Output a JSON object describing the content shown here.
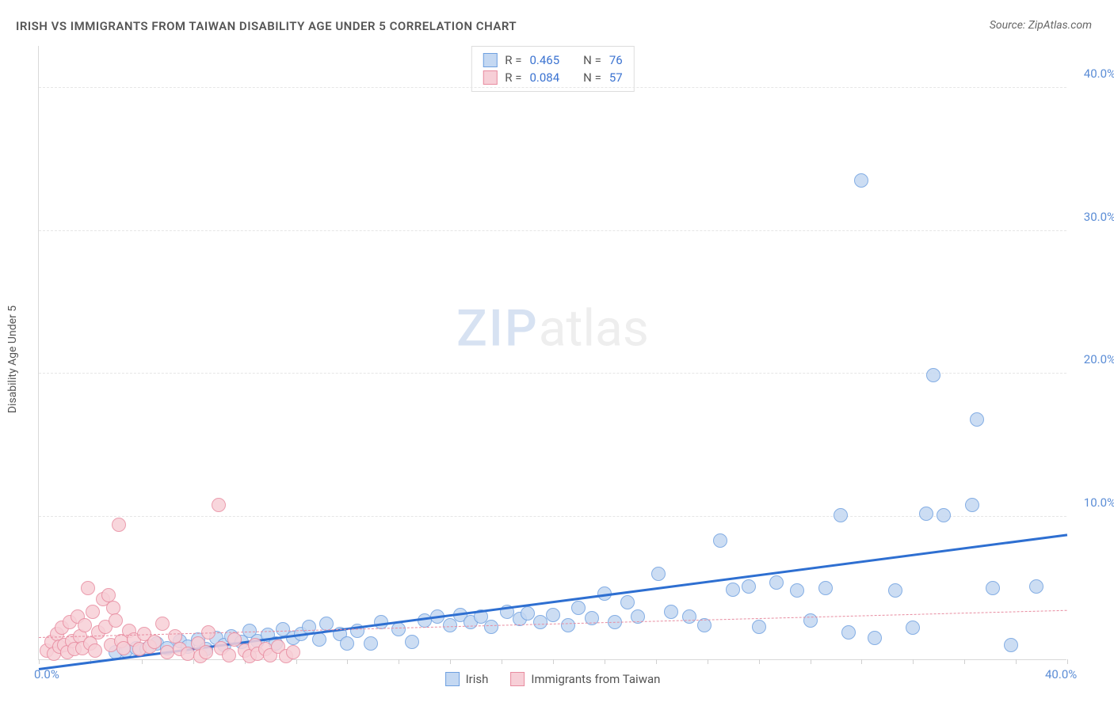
{
  "title": "IRISH VS IMMIGRANTS FROM TAIWAN DISABILITY AGE UNDER 5 CORRELATION CHART",
  "source_prefix": "Source: ",
  "source_name": "ZipAtlas.com",
  "y_axis_title": "Disability Age Under 5",
  "watermark": {
    "part1": "ZIP",
    "part2": "atlas"
  },
  "chart": {
    "type": "scatter",
    "background_color": "#ffffff",
    "grid_color": "#e6e6e6",
    "axis_color": "#d9d9d9",
    "label_color": "#5b8dd6",
    "xlim": [
      0,
      40
    ],
    "ylim": [
      0,
      43
    ],
    "x_ticks": [
      0,
      2,
      4,
      6,
      8,
      10,
      12,
      14,
      16,
      18,
      20,
      22,
      24,
      26,
      28,
      30,
      32,
      34,
      36,
      38,
      40
    ],
    "x_tick_labels": [
      {
        "v": 0,
        "label": "0.0%"
      },
      {
        "v": 40,
        "label": "40.0%"
      }
    ],
    "y_grid": [
      {
        "v": 10,
        "label": "10.0%"
      },
      {
        "v": 20,
        "label": "20.0%"
      },
      {
        "v": 30,
        "label": "30.0%"
      },
      {
        "v": 40,
        "label": "40.0%"
      }
    ],
    "marker_radius": 9,
    "marker_stroke_width": 1.2,
    "series": [
      {
        "id": "irish",
        "label": "Irish",
        "fill": "#c4d8f2",
        "stroke": "#6fa0e0",
        "trend_color": "#2e6fd1",
        "trend_dash": "solid",
        "trend_width": 3,
        "trend": {
          "x1": 0,
          "y1": -0.8,
          "x2": 40,
          "y2": 8.6
        },
        "R_label": "R = ",
        "R_value": "0.465",
        "N_label": "N = ",
        "N_value": "76",
        "points": [
          [
            3.0,
            0.5
          ],
          [
            3.4,
            0.6
          ],
          [
            3.8,
            0.8
          ],
          [
            4.2,
            0.7
          ],
          [
            4.6,
            1.1
          ],
          [
            5.0,
            0.8
          ],
          [
            5.5,
            1.3
          ],
          [
            5.8,
            0.9
          ],
          [
            6.2,
            1.4
          ],
          [
            6.5,
            0.7
          ],
          [
            6.9,
            1.5
          ],
          [
            7.2,
            1.0
          ],
          [
            7.5,
            1.6
          ],
          [
            7.9,
            1.2
          ],
          [
            8.2,
            2.0
          ],
          [
            8.5,
            1.3
          ],
          [
            8.9,
            1.7
          ],
          [
            9.2,
            1.1
          ],
          [
            9.5,
            2.1
          ],
          [
            9.9,
            1.5
          ],
          [
            10.2,
            1.8
          ],
          [
            10.5,
            2.3
          ],
          [
            10.9,
            1.4
          ],
          [
            11.2,
            2.5
          ],
          [
            11.7,
            1.8
          ],
          [
            12.0,
            1.1
          ],
          [
            12.4,
            2.0
          ],
          [
            12.9,
            1.1
          ],
          [
            13.3,
            2.6
          ],
          [
            14.0,
            2.1
          ],
          [
            14.5,
            1.2
          ],
          [
            15.0,
            2.7
          ],
          [
            15.5,
            3.0
          ],
          [
            16.0,
            2.4
          ],
          [
            16.4,
            3.1
          ],
          [
            16.8,
            2.6
          ],
          [
            17.2,
            3.0
          ],
          [
            17.6,
            2.3
          ],
          [
            18.2,
            3.3
          ],
          [
            18.7,
            2.8
          ],
          [
            19.0,
            3.2
          ],
          [
            19.5,
            2.6
          ],
          [
            20.0,
            3.1
          ],
          [
            20.6,
            2.4
          ],
          [
            21.0,
            3.6
          ],
          [
            21.5,
            2.9
          ],
          [
            22.0,
            4.6
          ],
          [
            22.4,
            2.6
          ],
          [
            22.9,
            4.0
          ],
          [
            23.3,
            3.0
          ],
          [
            24.1,
            6.0
          ],
          [
            24.6,
            3.3
          ],
          [
            25.3,
            3.0
          ],
          [
            25.9,
            2.4
          ],
          [
            26.5,
            8.3
          ],
          [
            27.0,
            4.9
          ],
          [
            27.6,
            5.1
          ],
          [
            28.0,
            2.3
          ],
          [
            28.7,
            5.4
          ],
          [
            29.5,
            4.8
          ],
          [
            30.0,
            2.7
          ],
          [
            30.6,
            5.0
          ],
          [
            31.2,
            10.1
          ],
          [
            31.5,
            1.9
          ],
          [
            32.0,
            33.5
          ],
          [
            32.5,
            1.5
          ],
          [
            33.3,
            4.8
          ],
          [
            34.0,
            2.2
          ],
          [
            34.5,
            10.2
          ],
          [
            34.8,
            19.9
          ],
          [
            35.2,
            10.1
          ],
          [
            36.3,
            10.8
          ],
          [
            36.5,
            16.8
          ],
          [
            37.1,
            5.0
          ],
          [
            37.8,
            1.0
          ],
          [
            38.8,
            5.1
          ]
        ]
      },
      {
        "id": "taiwan",
        "label": "Immigrants from Taiwan",
        "fill": "#f7cfd7",
        "stroke": "#e88ca0",
        "trend_color": "#e88ca0",
        "trend_dash": "dashed",
        "trend_width": 1,
        "trend": {
          "x1": 0,
          "y1": 1.5,
          "x2": 40,
          "y2": 3.4
        },
        "R_label": "R = ",
        "R_value": "0.084",
        "N_label": "N = ",
        "N_value": "57",
        "points": [
          [
            0.3,
            0.6
          ],
          [
            0.5,
            1.2
          ],
          [
            0.6,
            0.4
          ],
          [
            0.7,
            1.8
          ],
          [
            0.8,
            0.9
          ],
          [
            0.9,
            2.2
          ],
          [
            1.0,
            1.0
          ],
          [
            1.1,
            0.5
          ],
          [
            1.2,
            2.6
          ],
          [
            1.3,
            1.3
          ],
          [
            1.4,
            0.7
          ],
          [
            1.5,
            3.0
          ],
          [
            1.6,
            1.6
          ],
          [
            1.7,
            0.8
          ],
          [
            1.8,
            2.4
          ],
          [
            1.9,
            5.0
          ],
          [
            2.0,
            1.1
          ],
          [
            2.1,
            3.3
          ],
          [
            2.2,
            0.6
          ],
          [
            2.3,
            1.9
          ],
          [
            2.5,
            4.2
          ],
          [
            2.6,
            2.3
          ],
          [
            2.7,
            4.5
          ],
          [
            2.8,
            1.0
          ],
          [
            2.9,
            3.6
          ],
          [
            3.0,
            2.7
          ],
          [
            3.1,
            9.4
          ],
          [
            3.2,
            1.3
          ],
          [
            3.3,
            0.8
          ],
          [
            3.5,
            2.0
          ],
          [
            3.7,
            1.4
          ],
          [
            3.9,
            0.7
          ],
          [
            4.1,
            1.8
          ],
          [
            4.3,
            0.9
          ],
          [
            4.5,
            1.2
          ],
          [
            4.8,
            2.5
          ],
          [
            5.0,
            0.5
          ],
          [
            5.3,
            1.6
          ],
          [
            5.5,
            0.7
          ],
          [
            5.8,
            0.4
          ],
          [
            6.2,
            1.1
          ],
          [
            6.3,
            0.2
          ],
          [
            6.5,
            0.5
          ],
          [
            6.6,
            1.9
          ],
          [
            7.0,
            10.8
          ],
          [
            7.1,
            0.8
          ],
          [
            7.4,
            0.3
          ],
          [
            7.6,
            1.4
          ],
          [
            8.0,
            0.6
          ],
          [
            8.2,
            0.2
          ],
          [
            8.4,
            1.0
          ],
          [
            8.5,
            0.4
          ],
          [
            8.8,
            0.7
          ],
          [
            9.0,
            0.3
          ],
          [
            9.3,
            0.9
          ],
          [
            9.6,
            0.2
          ],
          [
            9.9,
            0.5
          ]
        ]
      }
    ]
  }
}
